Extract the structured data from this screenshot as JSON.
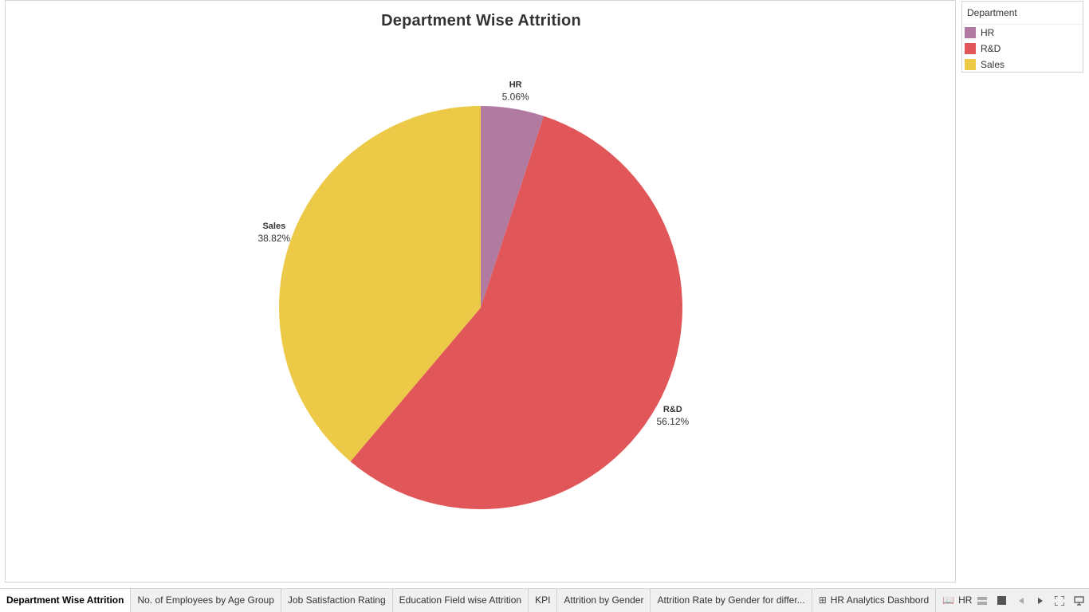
{
  "chart_data": {
    "type": "pie",
    "title": "Department Wise Attrition",
    "slices": [
      {
        "label": "HR",
        "value": 5.06,
        "display": "5.06%",
        "color": "#b07aa1"
      },
      {
        "label": "R&D",
        "value": 56.12,
        "display": "56.12%",
        "color": "#e15759"
      },
      {
        "label": "Sales",
        "value": 38.82,
        "display": "38.82%",
        "color": "#edc948"
      }
    ],
    "start_angle_deg": 0,
    "direction": "clockwise",
    "legend_position": "top-right"
  },
  "legend": {
    "title": "Department",
    "items": [
      {
        "label": "HR",
        "color": "#b07aa1"
      },
      {
        "label": "R&D",
        "color": "#e15759"
      },
      {
        "label": "Sales",
        "color": "#edc948"
      }
    ]
  },
  "tabs": [
    {
      "label": "Department Wise Attrition",
      "active": true,
      "icon": ""
    },
    {
      "label": "No. of Employees by Age Group",
      "active": false,
      "icon": ""
    },
    {
      "label": "Job Satisfaction Rating",
      "active": false,
      "icon": ""
    },
    {
      "label": "Education Field wise Attrition",
      "active": false,
      "icon": ""
    },
    {
      "label": "KPI",
      "active": false,
      "icon": ""
    },
    {
      "label": "Attrition by Gender",
      "active": false,
      "icon": ""
    },
    {
      "label": "Attrition Rate by Gender for differ...",
      "active": false,
      "icon": ""
    },
    {
      "label": "HR Analytics Dashbord",
      "active": false,
      "icon": "dashboard-icon"
    },
    {
      "label": "HR A",
      "active": false,
      "icon": "story-icon"
    }
  ],
  "nav": {
    "icons": [
      "sheet-sorter-icon",
      "filmstrip-icon",
      "prev-icon",
      "next-icon",
      "fullscreen-icon",
      "presentation-icon"
    ]
  }
}
